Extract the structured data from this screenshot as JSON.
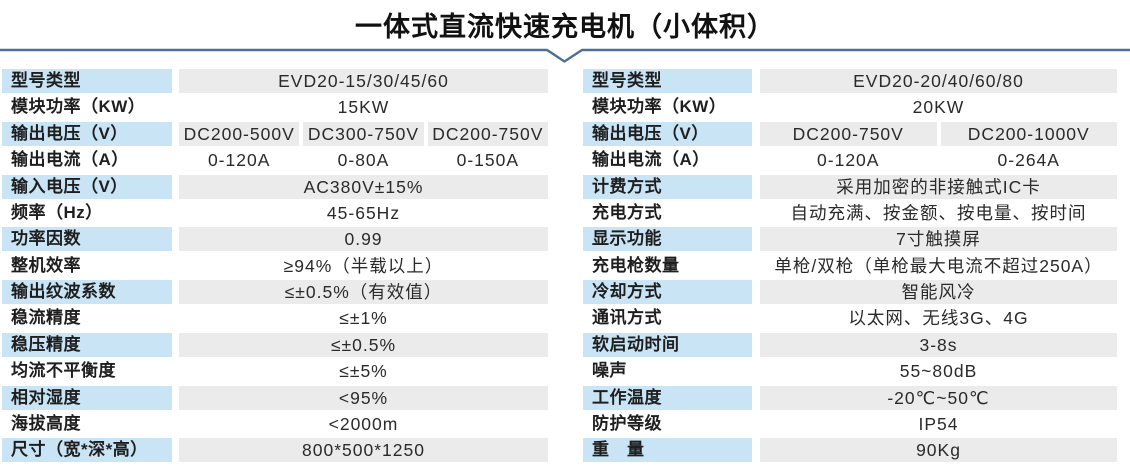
{
  "title": "一体式直流快速充电机（小体积）",
  "colors": {
    "divider": "#4E6F94",
    "label_bg": "#C8E4F5",
    "value_bg": "#EBEBEB",
    "label_text": "#1E1E1E",
    "value_text": "#2A2A2A",
    "title_text": "#111111"
  },
  "tables": [
    {
      "id": "left",
      "rows": [
        {
          "label": "型号类型",
          "values": [
            "EVD20-15/30/45/60"
          ]
        },
        {
          "label": "模块功率（KW）",
          "values": [
            "15KW"
          ]
        },
        {
          "label": "输出电压（V）",
          "values": [
            "DC200-500V",
            "DC300-750V",
            "DC200-750V"
          ]
        },
        {
          "label": "输出电流（A）",
          "values": [
            "0-120A",
            "0-80A",
            "0-150A"
          ]
        },
        {
          "label": "输入电压（V）",
          "values": [
            "AC380V±15%"
          ]
        },
        {
          "label": "频率（Hz）",
          "values": [
            "45-65Hz"
          ]
        },
        {
          "label": "功率因数",
          "values": [
            "0.99"
          ]
        },
        {
          "label": "整机效率",
          "values": [
            "≥94%（半载以上）"
          ]
        },
        {
          "label": "输出纹波系数",
          "values": [
            "≤±0.5%（有效值）"
          ]
        },
        {
          "label": "稳流精度",
          "values": [
            "≤±1%"
          ]
        },
        {
          "label": "稳压精度",
          "values": [
            "≤±0.5%"
          ]
        },
        {
          "label": "均流不平衡度",
          "values": [
            "≤±5%"
          ]
        },
        {
          "label": "相对湿度",
          "values": [
            "<95%"
          ]
        },
        {
          "label": "海拔高度",
          "values": [
            "<2000m"
          ]
        },
        {
          "label": "尺寸（宽*深*高）",
          "values": [
            "800*500*1250"
          ]
        }
      ]
    },
    {
      "id": "right",
      "rows": [
        {
          "label": "型号类型",
          "values": [
            "EVD20-20/40/60/80"
          ]
        },
        {
          "label": "模块功率（KW）",
          "values": [
            "20KW"
          ]
        },
        {
          "label": "输出电压（V）",
          "values": [
            "DC200-750V",
            "DC200-1000V"
          ]
        },
        {
          "label": "输出电流（A）",
          "values": [
            "0-120A",
            "0-264A"
          ]
        },
        {
          "label": "计费方式",
          "values": [
            "采用加密的非接触式IC卡"
          ]
        },
        {
          "label": "充电方式",
          "values": [
            "自动充满、按金额、按电量、按时间"
          ]
        },
        {
          "label": "显示功能",
          "values": [
            "7寸触摸屏"
          ]
        },
        {
          "label": "充电枪数量",
          "values": [
            "单枪/双枪（单枪最大电流不超过250A）"
          ]
        },
        {
          "label": "冷却方式",
          "values": [
            "智能风冷"
          ]
        },
        {
          "label": "通讯方式",
          "values": [
            "以太网、无线3G、4G"
          ]
        },
        {
          "label": "软启动时间",
          "values": [
            "3-8s"
          ]
        },
        {
          "label": "噪声",
          "values": [
            "55~80dB"
          ]
        },
        {
          "label": "工作温度",
          "values": [
            "-20℃~50℃"
          ]
        },
        {
          "label": "防护等级",
          "values": [
            "IP54"
          ]
        },
        {
          "label": "重　量",
          "values": [
            "90Kg"
          ]
        }
      ]
    }
  ]
}
